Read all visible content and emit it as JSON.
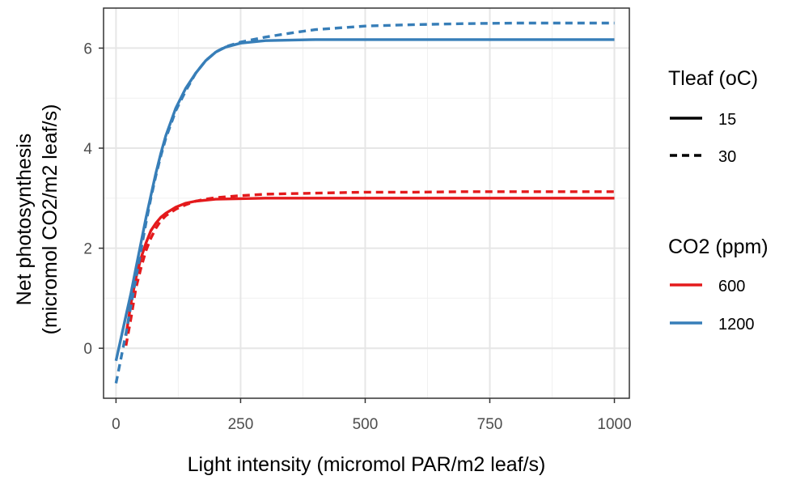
{
  "chart_data": {
    "type": "line",
    "xlabel": "Light intensity (micromol PAR/m2 leaf/s)",
    "ylabel_lines": [
      "Net photosynthesis",
      "(micromol CO2/m2 leaf/s)"
    ],
    "xlim": [
      -25,
      1030
    ],
    "ylim": [
      -1.0,
      6.8
    ],
    "x_ticks": [
      0,
      250,
      500,
      750,
      1000
    ],
    "y_ticks": [
      0,
      2,
      4,
      6
    ],
    "x_tick_labels": [
      "0",
      "250",
      "500",
      "750",
      "1000"
    ],
    "y_tick_labels": [
      "0",
      "2",
      "4",
      "6"
    ],
    "grid": true,
    "legend_position": "right",
    "legend": {
      "tleaf": {
        "title": "Tleaf (oC)",
        "items": [
          {
            "label": "15",
            "dash": "solid"
          },
          {
            "label": "30",
            "dash": "dashed"
          }
        ]
      },
      "co2": {
        "title": "CO2 (ppm)",
        "items": [
          {
            "label": "600",
            "color": "#e41a1c"
          },
          {
            "label": "1200",
            "color": "#377eb8"
          }
        ]
      }
    },
    "series": [
      {
        "co2": "600",
        "tleaf": "15",
        "color": "#e41a1c",
        "dash": "solid",
        "x": [
          20,
          30,
          40,
          50,
          60,
          70,
          80,
          90,
          100,
          120,
          140,
          160,
          180,
          200,
          250,
          300,
          400,
          500,
          600,
          700,
          800,
          900,
          1000
        ],
        "y": [
          0.25,
          0.9,
          1.4,
          1.8,
          2.1,
          2.35,
          2.5,
          2.62,
          2.7,
          2.82,
          2.9,
          2.94,
          2.96,
          2.98,
          2.99,
          3.0,
          3.0,
          3.0,
          3.0,
          3.0,
          3.0,
          3.0,
          3.0
        ]
      },
      {
        "co2": "600",
        "tleaf": "30",
        "color": "#e41a1c",
        "dash": "dashed",
        "x": [
          20,
          30,
          40,
          50,
          60,
          70,
          80,
          90,
          100,
          120,
          140,
          160,
          180,
          200,
          250,
          300,
          400,
          500,
          600,
          700,
          800,
          900,
          1000
        ],
        "y": [
          0.05,
          0.6,
          1.2,
          1.6,
          1.95,
          2.2,
          2.4,
          2.55,
          2.65,
          2.78,
          2.87,
          2.94,
          2.98,
          3.01,
          3.05,
          3.08,
          3.1,
          3.12,
          3.12,
          3.13,
          3.13,
          3.13,
          3.13
        ]
      },
      {
        "co2": "1200",
        "tleaf": "15",
        "color": "#377eb8",
        "dash": "solid",
        "x": [
          0,
          10,
          20,
          30,
          40,
          50,
          60,
          70,
          80,
          90,
          100,
          120,
          140,
          160,
          180,
          200,
          220,
          250,
          300,
          400,
          500,
          600,
          700,
          800,
          900,
          1000
        ],
        "y": [
          -0.25,
          0.2,
          0.65,
          1.1,
          1.6,
          2.1,
          2.6,
          3.05,
          3.5,
          3.9,
          4.25,
          4.8,
          5.2,
          5.5,
          5.75,
          5.92,
          6.02,
          6.1,
          6.15,
          6.17,
          6.17,
          6.17,
          6.17,
          6.17,
          6.17,
          6.17
        ]
      },
      {
        "co2": "1200",
        "tleaf": "30",
        "color": "#377eb8",
        "dash": "dashed",
        "x": [
          0,
          10,
          20,
          30,
          40,
          50,
          60,
          70,
          80,
          90,
          100,
          120,
          140,
          160,
          180,
          200,
          220,
          250,
          300,
          350,
          400,
          500,
          600,
          700,
          800,
          900,
          1000
        ],
        "y": [
          -0.7,
          -0.2,
          0.3,
          0.85,
          1.4,
          1.95,
          2.5,
          3.0,
          3.45,
          3.85,
          4.2,
          4.75,
          5.15,
          5.5,
          5.75,
          5.92,
          6.03,
          6.12,
          6.22,
          6.3,
          6.37,
          6.44,
          6.47,
          6.49,
          6.5,
          6.5,
          6.5
        ]
      }
    ]
  }
}
